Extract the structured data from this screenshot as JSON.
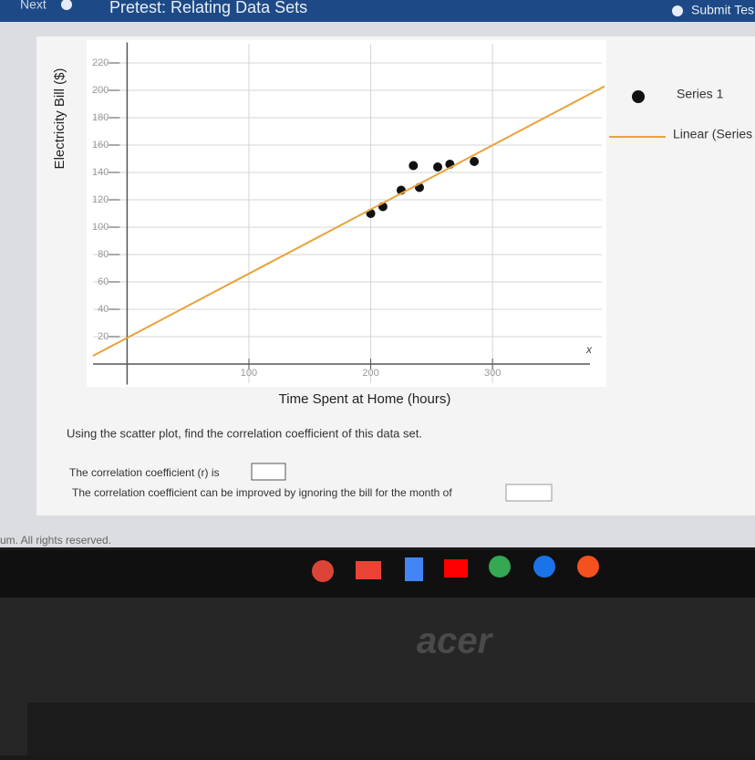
{
  "header": {
    "next": "Next",
    "title": "Pretest: Relating Data Sets",
    "submit": "Submit Tes"
  },
  "chart_data": {
    "type": "scatter",
    "x_label": "Time Spent at Home (hours)",
    "y_label": "Electricity Bill ($)",
    "x_axis_end_label": "x",
    "series": [
      {
        "name": "Series 1",
        "color": "#111111",
        "x": [
          200,
          210,
          225,
          235,
          240,
          255,
          265,
          285
        ],
        "values": [
          110,
          115,
          127,
          145,
          129,
          144,
          146,
          148
        ]
      },
      {
        "name": "Linear (Series",
        "color": "#e8a33a",
        "type": "line",
        "x": [
          -28,
          392
        ],
        "values": [
          6,
          203
        ]
      }
    ],
    "xlim": [
      -28,
      380
    ],
    "ylim": [
      -15,
      235
    ],
    "xticks": [
      100,
      200,
      300
    ],
    "yticks": [
      20,
      40,
      60,
      80,
      100,
      120,
      140,
      160,
      180,
      200,
      220
    ],
    "grid": true
  },
  "question": {
    "prompt": "Using the scatter plot, find the correlation coefficient of this data set.",
    "line1": "The correlation coefficient (r) is",
    "line2": "The correlation coefficient can be improved by ignoring the bill for the month of"
  },
  "footer": "um. All rights reserved.",
  "brand": "acer"
}
